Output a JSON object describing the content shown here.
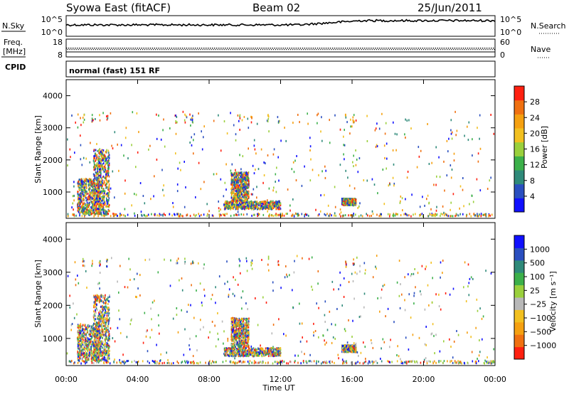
{
  "header": {
    "station": "Syowa East (fitACF)",
    "beam": "Beam 02",
    "date": "25/Jun/2011"
  },
  "nsky_panel": {
    "left_label": "N.Sky",
    "right_label": "N.Search",
    "y_ticks_left": [
      "10^5",
      "10^0"
    ],
    "y_ticks_right": [
      "10^5",
      "10^0"
    ]
  },
  "freq_panel": {
    "left_label_top": "Freq.",
    "left_label_unit": "[MHz]",
    "right_label": "Nave",
    "y_ticks_left": [
      "18",
      "8"
    ],
    "y_ticks_right": [
      "60",
      "0"
    ]
  },
  "cpid": {
    "label": "CPID",
    "mode_text": "normal (fast) 151 RF"
  },
  "chart_data": [
    {
      "type": "heatmap",
      "title": "",
      "xlabel": "",
      "ylabel": "Slant Range [km]",
      "xlim": [
        0,
        24
      ],
      "ylim": [
        180,
        4500
      ],
      "yticks": [
        "1000",
        "2000",
        "3000",
        "4000"
      ],
      "colorbar": {
        "label": "Power [dB]",
        "ticks": [
          "4",
          "8",
          "12",
          "16",
          "20",
          "24",
          "28"
        ],
        "colors": [
          "#1010ff",
          "#2a4fc0",
          "#2f8a7a",
          "#3cb04a",
          "#9ad03c",
          "#f2c020",
          "#f5a010",
          "#f07010",
          "#ff2010"
        ]
      },
      "blobs": [
        {
          "x": [
            0.6,
            1.9
          ],
          "y": [
            300,
            1400
          ],
          "level": "mixed"
        },
        {
          "x": [
            1.5,
            2.4
          ],
          "y": [
            300,
            2300
          ],
          "level": "mixed"
        },
        {
          "x": [
            8.8,
            12.0
          ],
          "y": [
            450,
            700
          ],
          "level": "mixed"
        },
        {
          "x": [
            9.2,
            10.2
          ],
          "y": [
            700,
            1600
          ],
          "level": "mixed"
        },
        {
          "x": [
            15.4,
            16.2
          ],
          "y": [
            580,
            780
          ],
          "level": "mixed"
        }
      ]
    },
    {
      "type": "heatmap",
      "title": "",
      "xlabel": "Time UT",
      "ylabel": "Slant Range [km]",
      "xlim": [
        0,
        24
      ],
      "ylim": [
        180,
        4500
      ],
      "xticks": [
        "00:00",
        "04:00",
        "08:00",
        "12:00",
        "16:00",
        "20:00",
        "00:00"
      ],
      "yticks": [
        "1000",
        "2000",
        "3000",
        "4000"
      ],
      "colorbar": {
        "label": "Velocity [m s⁻¹]",
        "ticks": [
          "1000",
          "500",
          "100",
          "25",
          "−25",
          "−100",
          "−500",
          "−1000"
        ],
        "colors": [
          "#1010ff",
          "#2a4fc0",
          "#2f8a7a",
          "#3cb04a",
          "#9ad03c",
          "#b8b8b8",
          "#f2c020",
          "#f5a010",
          "#f07010",
          "#ff2010"
        ]
      },
      "blobs": [
        {
          "x": [
            0.6,
            1.9
          ],
          "y": [
            300,
            1400
          ],
          "level": "mixed"
        },
        {
          "x": [
            1.5,
            2.4
          ],
          "y": [
            300,
            2300
          ],
          "level": "mixed"
        },
        {
          "x": [
            8.8,
            12.0
          ],
          "y": [
            450,
            700
          ],
          "level": "mixed"
        },
        {
          "x": [
            9.2,
            10.2
          ],
          "y": [
            700,
            1600
          ],
          "level": "mixed"
        },
        {
          "x": [
            15.4,
            16.2
          ],
          "y": [
            580,
            780
          ],
          "level": "mixed"
        }
      ]
    }
  ]
}
